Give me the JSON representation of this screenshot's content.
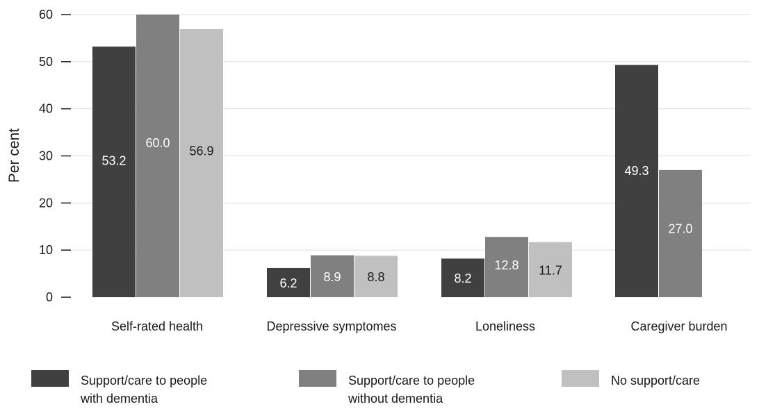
{
  "chart_data": {
    "type": "bar",
    "categories": [
      "Self-rated health",
      "Depressive symptomes",
      "Loneliness",
      "Caregiver burden"
    ],
    "series": [
      {
        "name": "Support/care to people with dementia",
        "legend_lines": [
          "Support/care to people",
          "with dementia"
        ],
        "values": [
          53.2,
          6.2,
          8.2,
          49.3
        ],
        "color": "#404040",
        "label_color": "#ffffff"
      },
      {
        "name": "Support/care to people without dementia",
        "legend_lines": [
          "Support/care to people",
          "without dementia"
        ],
        "values": [
          60.0,
          8.9,
          12.8,
          27.0
        ],
        "color": "#808080",
        "label_color": "#ffffff"
      },
      {
        "name": "No support/care",
        "legend_lines": [
          "No support/care"
        ],
        "values": [
          56.9,
          8.8,
          11.7,
          null
        ],
        "color": "#c0c0c0",
        "label_color": "#1a1a1a"
      }
    ],
    "value_labels": [
      [
        "53.2",
        "6.2",
        "8.2",
        "49.3"
      ],
      [
        "60.0",
        "8.9",
        "12.8",
        "27.0"
      ],
      [
        "56.9",
        "8.8",
        "11.7",
        ""
      ]
    ],
    "ylabel": "Per cent",
    "ylim": [
      0,
      60
    ],
    "yticks": [
      0,
      10,
      20,
      30,
      40,
      50,
      60
    ],
    "ytick_labels": [
      "0",
      "10",
      "20",
      "30",
      "40",
      "50",
      "60"
    ],
    "grid": true,
    "legend_position": "bottom"
  }
}
